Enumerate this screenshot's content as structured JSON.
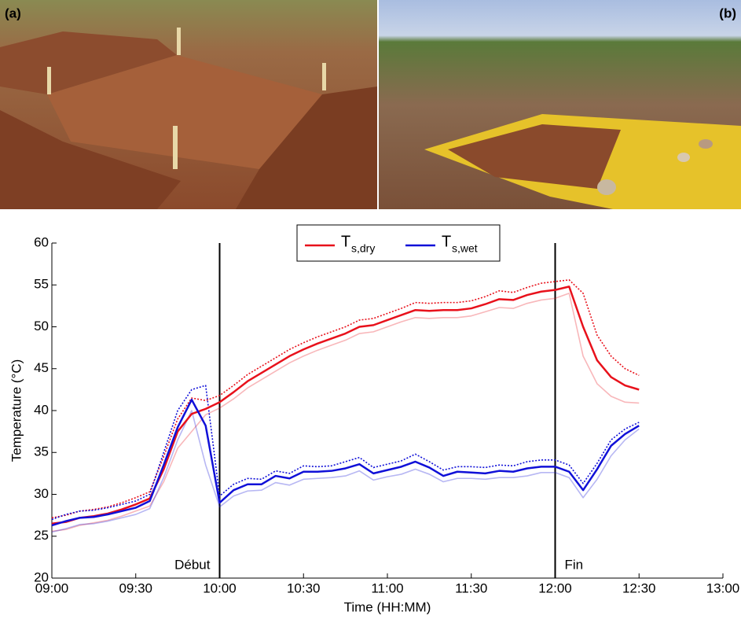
{
  "panels": [
    "(a)",
    "(b)"
  ],
  "chart_data": {
    "type": "line",
    "xlabel": "Time (HH:MM)",
    "ylabel": "Temperature (°C)",
    "xlim": [
      "09:00",
      "13:00"
    ],
    "xticks": [
      "09:00",
      "09:30",
      "10:00",
      "10:30",
      "11:00",
      "11:30",
      "12:00",
      "12:30",
      "13:00"
    ],
    "ylim": [
      20,
      60
    ],
    "yticks": [
      20,
      25,
      30,
      35,
      40,
      45,
      50,
      55,
      60
    ],
    "legend": "top",
    "annotations": [
      {
        "x": "10:00",
        "label": "Début"
      },
      {
        "x": "12:00",
        "label": "Fin"
      }
    ],
    "x": [
      "09:00",
      "09:05",
      "09:10",
      "09:15",
      "09:20",
      "09:25",
      "09:30",
      "09:35",
      "09:40",
      "09:45",
      "09:50",
      "09:55",
      "10:00",
      "10:05",
      "10:10",
      "10:15",
      "10:20",
      "10:25",
      "10:30",
      "10:35",
      "10:40",
      "10:45",
      "10:50",
      "10:55",
      "11:00",
      "11:05",
      "11:10",
      "11:15",
      "11:20",
      "11:25",
      "11:30",
      "11:35",
      "11:40",
      "11:45",
      "11:50",
      "11:55",
      "12:00",
      "12:05",
      "12:10",
      "12:15",
      "12:20",
      "12:25",
      "12:30"
    ],
    "series": [
      {
        "name": "T",
        "subscript": "s,dry",
        "color": "#e8111b",
        "style": "solid",
        "values": [
          26.5,
          26.7,
          27.2,
          27.4,
          27.7,
          28.2,
          28.8,
          29.5,
          33,
          37.5,
          39.6,
          40.2,
          41,
          42.2,
          43.5,
          44.5,
          45.5,
          46.5,
          47.3,
          48,
          48.6,
          49.2,
          50,
          50.2,
          50.8,
          51.4,
          52,
          51.9,
          52,
          52,
          52.2,
          52.7,
          53.3,
          53.2,
          53.8,
          54.2,
          54.4,
          54.8,
          50,
          46,
          44,
          43,
          42.5
        ]
      },
      {
        "color": "#e8111b",
        "style": "dotted",
        "values": [
          27.2,
          27.5,
          28,
          28.2,
          28.5,
          29,
          29.6,
          30.3,
          34.5,
          39,
          41.5,
          41.2,
          41.8,
          43,
          44.3,
          45.3,
          46.3,
          47.3,
          48.1,
          48.8,
          49.4,
          50,
          50.8,
          51,
          51.6,
          52.2,
          52.9,
          52.8,
          52.9,
          52.9,
          53.1,
          53.6,
          54.3,
          54.1,
          54.7,
          55.2,
          55.4,
          55.6,
          54,
          49,
          46.5,
          45,
          44.2
        ]
      },
      {
        "color": "#e8111b",
        "style": "light",
        "values": [
          25.6,
          25.8,
          26.3,
          26.6,
          26.9,
          27.4,
          28,
          28.6,
          31.5,
          35.5,
          37.5,
          39.5,
          40.3,
          41.4,
          42.7,
          43.7,
          44.7,
          45.7,
          46.5,
          47.2,
          47.8,
          48.4,
          49.2,
          49.4,
          50,
          50.6,
          51.1,
          51,
          51.1,
          51.1,
          51.3,
          51.8,
          52.3,
          52.2,
          52.8,
          53.2,
          53.4,
          54,
          46.5,
          43.2,
          41.7,
          41,
          40.9
        ]
      },
      {
        "name": "T",
        "subscript": "s,wet",
        "color": "#1010d8",
        "style": "solid",
        "values": [
          26.3,
          26.8,
          27.2,
          27.3,
          27.6,
          28,
          28.4,
          29.2,
          33.5,
          38,
          41.3,
          38.2,
          29,
          30.5,
          31.2,
          31.2,
          32.2,
          31.9,
          32.7,
          32.7,
          32.8,
          33.1,
          33.6,
          32.5,
          32.9,
          33.3,
          33.9,
          33.2,
          32.2,
          32.7,
          32.6,
          32.5,
          32.8,
          32.7,
          33.1,
          33.3,
          33.3,
          32.7,
          30.5,
          33,
          35.8,
          37.2,
          38.2
        ]
      },
      {
        "color": "#1010d8",
        "style": "dotted",
        "values": [
          27,
          27.6,
          28,
          28.1,
          28.4,
          28.8,
          29.2,
          30,
          35,
          40,
          42.5,
          43,
          29.8,
          31.2,
          31.9,
          31.8,
          32.8,
          32.5,
          33.4,
          33.3,
          33.4,
          33.9,
          34.4,
          33.2,
          33.6,
          34,
          34.8,
          33.9,
          32.9,
          33.3,
          33.3,
          33.2,
          33.5,
          33.4,
          33.9,
          34.1,
          34.1,
          33.5,
          31.3,
          33.7,
          36.5,
          37.8,
          38.6
        ]
      },
      {
        "color": "#1010d8",
        "style": "light",
        "values": [
          25.5,
          25.9,
          26.4,
          26.5,
          26.8,
          27.2,
          27.6,
          28.3,
          32,
          36.5,
          40,
          33.5,
          28.5,
          29.8,
          30.4,
          30.5,
          31.4,
          31.1,
          31.8,
          31.9,
          32,
          32.2,
          32.8,
          31.7,
          32.1,
          32.4,
          33,
          32.4,
          31.5,
          31.9,
          31.9,
          31.8,
          32,
          32,
          32.2,
          32.6,
          32.6,
          32,
          29.6,
          31.8,
          34.6,
          36.5,
          37.8
        ]
      }
    ]
  }
}
